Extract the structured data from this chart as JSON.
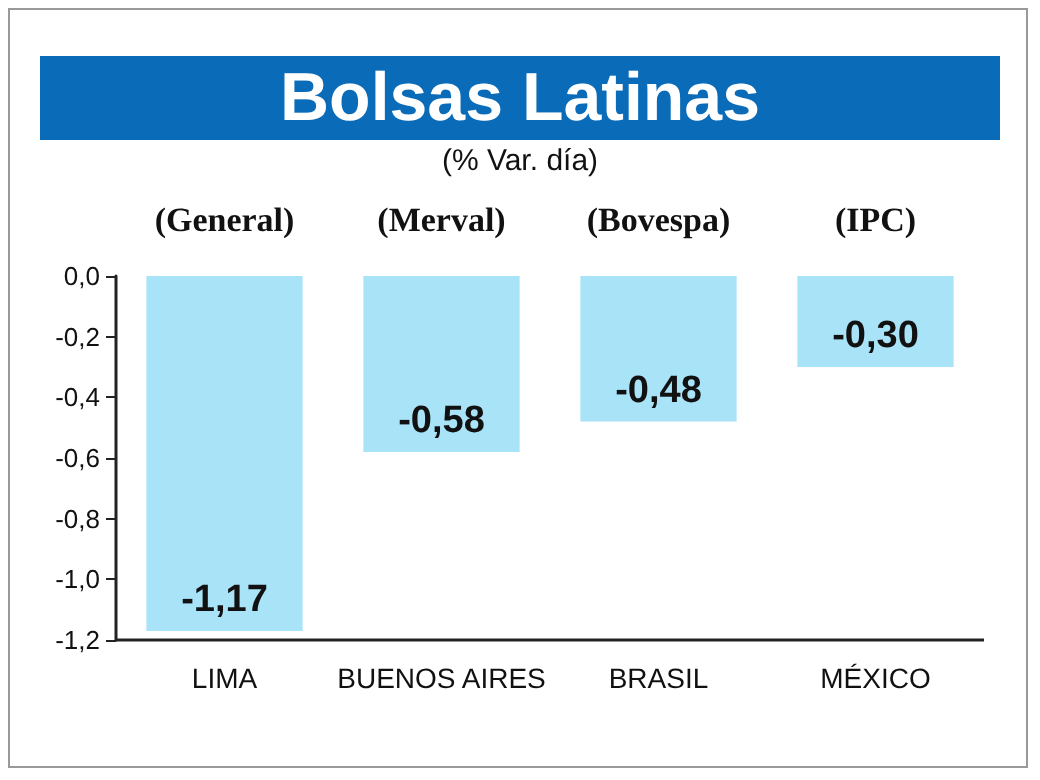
{
  "chart_data": {
    "type": "bar",
    "title": "Bolsas Latinas",
    "subtitle": "(% Var. día)",
    "categories": [
      "LIMA",
      "BUENOS AIRES",
      "BRASIL",
      "MÉXICO"
    ],
    "values": [
      -1.17,
      -0.58,
      -0.48,
      -0.3
    ],
    "value_labels": [
      "-1,17",
      "-0,58",
      "-0,48",
      "-0,30"
    ],
    "color": "#a8e3f8",
    "ylim": [
      -1.2,
      0
    ],
    "yticks": [
      {
        "value": -1.2,
        "label": "-1,2"
      },
      {
        "value": -1.0,
        "label": "-1,0"
      },
      {
        "value": -0.8,
        "label": "-0,8"
      },
      {
        "value": -0.6,
        "label": "-0,6"
      },
      {
        "value": -0.4,
        "label": "-0,4"
      },
      {
        "value": -0.2,
        "label": "-0,2"
      },
      {
        "value": 0,
        "label": "0,0"
      }
    ],
    "annotations": [
      "(General)",
      "(Merval)",
      "(Bovespa)",
      "(IPC)"
    ],
    "grid": false
  }
}
